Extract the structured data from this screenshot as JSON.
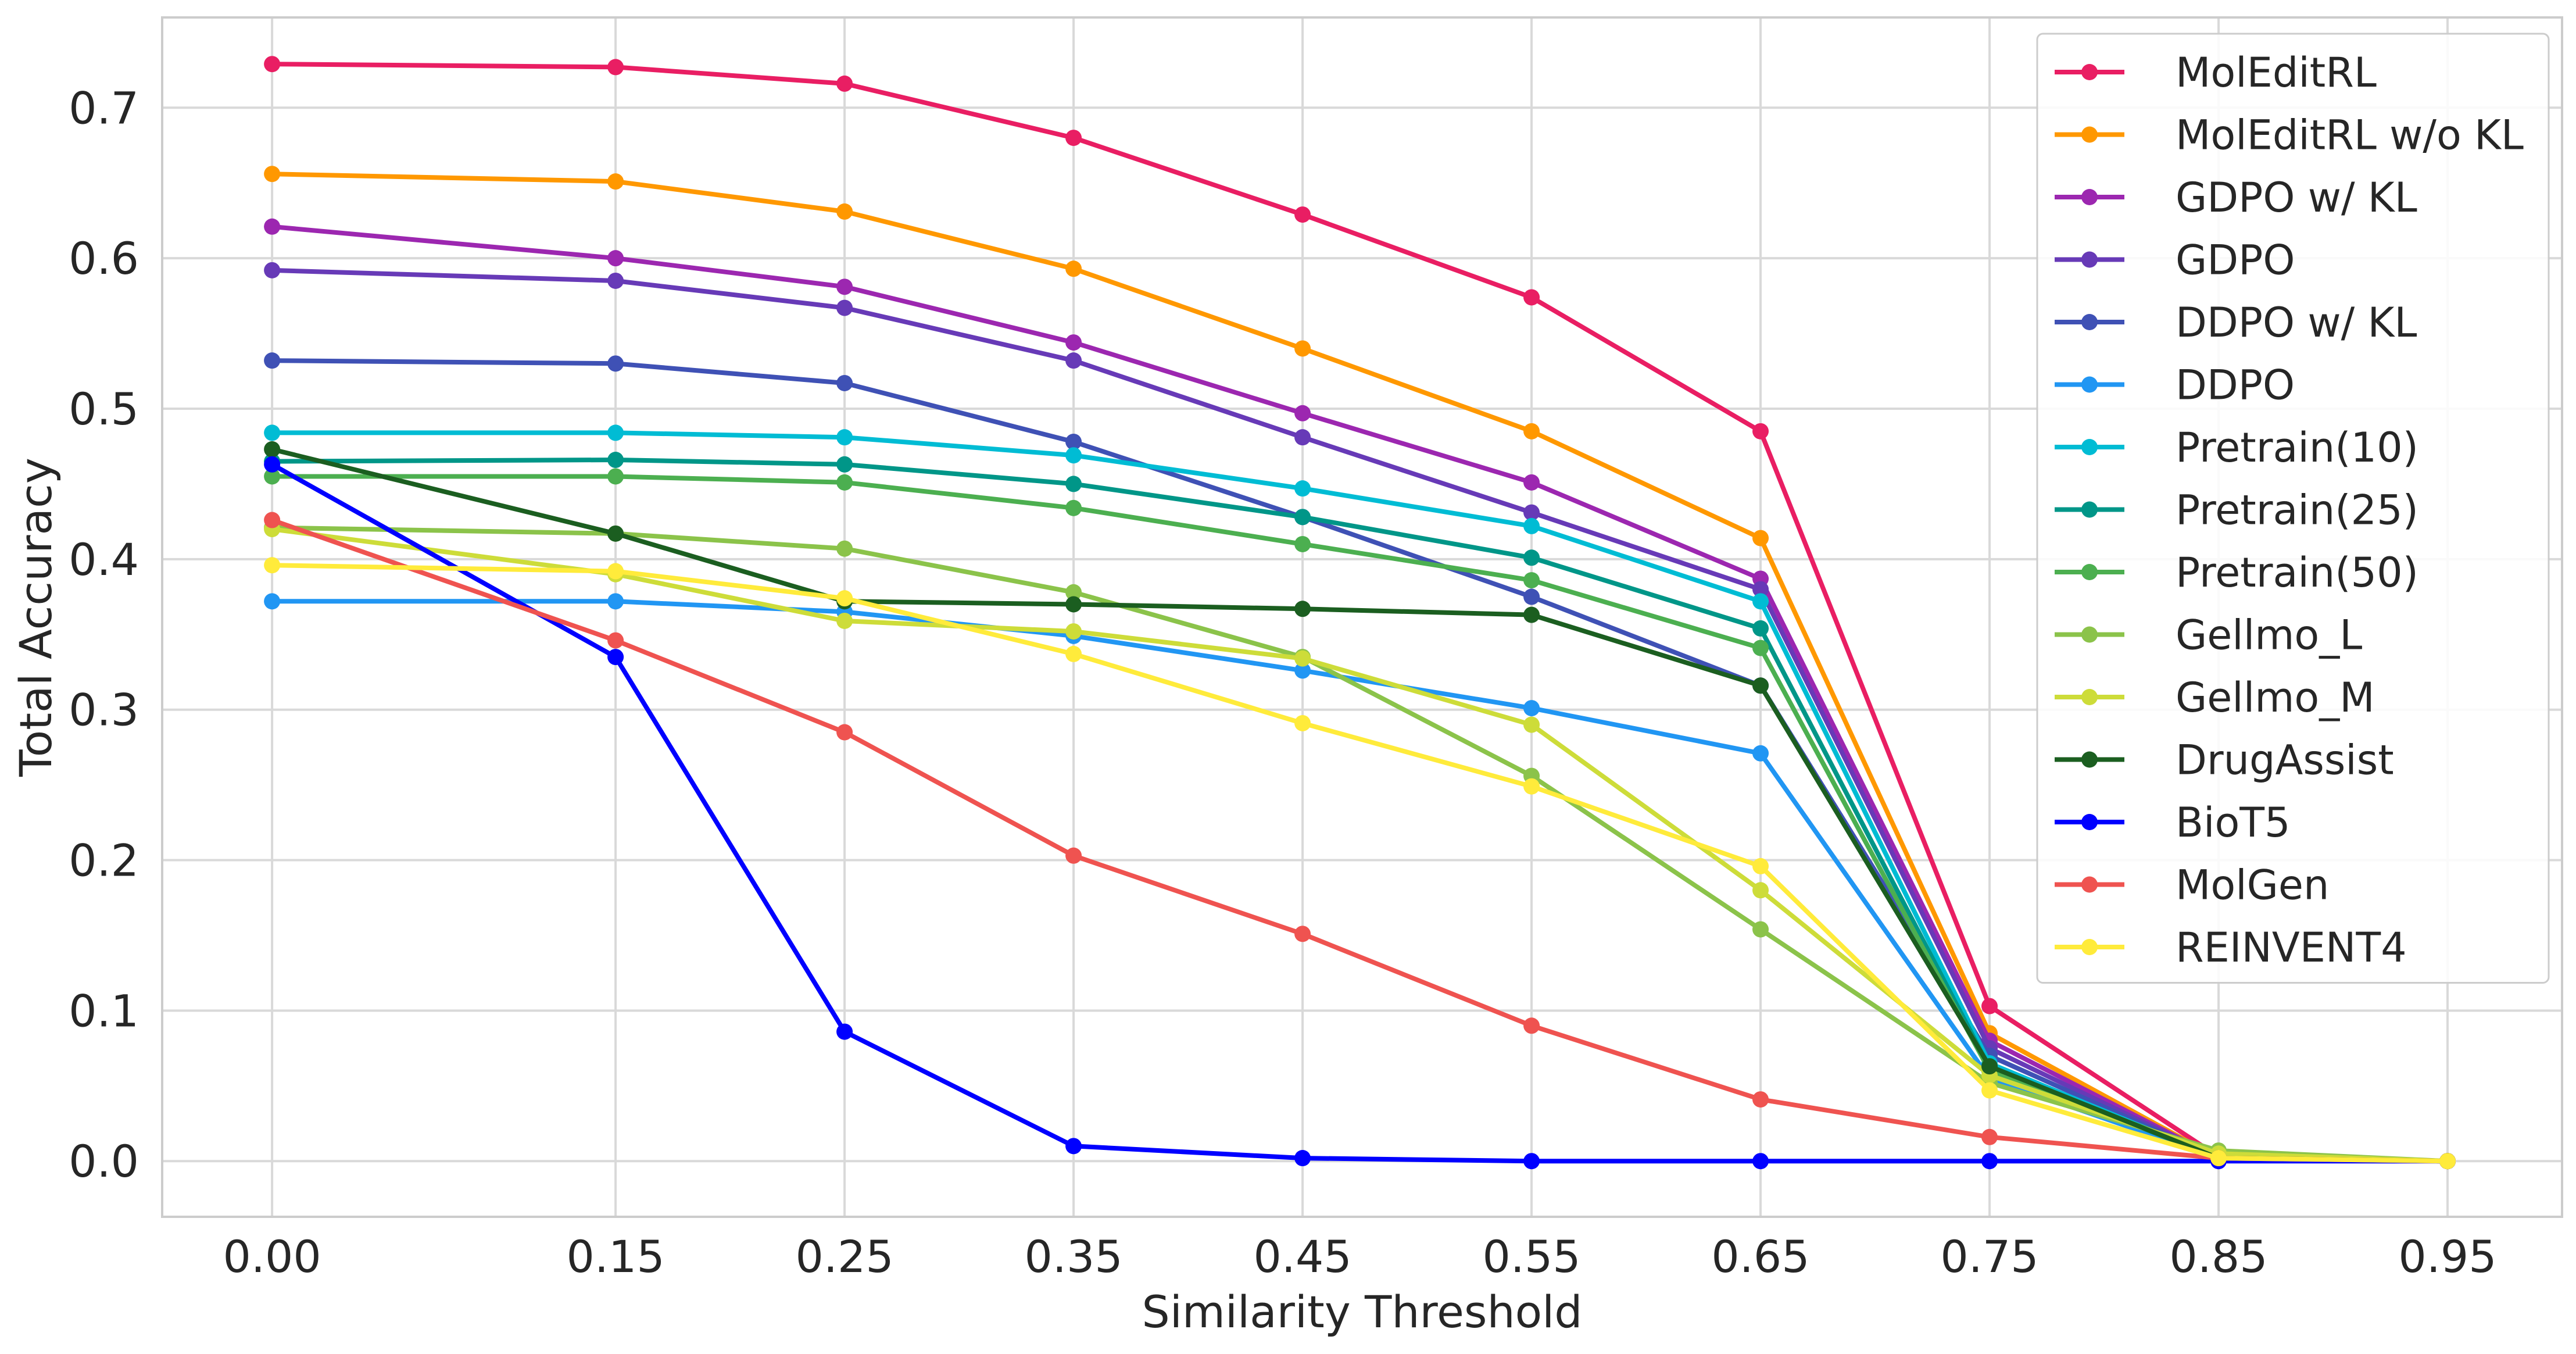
{
  "chart_data": {
    "type": "line",
    "xlabel": "Similarity Threshold",
    "ylabel": "Total Accuracy",
    "x": [
      0.0,
      0.15,
      0.25,
      0.35,
      0.45,
      0.55,
      0.65,
      0.75,
      0.85,
      0.95
    ],
    "x_tick_labels": [
      "0.00",
      "0.15",
      "0.25",
      "0.35",
      "0.45",
      "0.55",
      "0.65",
      "0.75",
      "0.85",
      "0.95"
    ],
    "xlim": [
      -0.048,
      1.0
    ],
    "ylim": [
      -0.037,
      0.76
    ],
    "y_ticks": [
      0.0,
      0.1,
      0.2,
      0.3,
      0.4,
      0.5,
      0.6,
      0.7
    ],
    "y_tick_labels": [
      "0.0",
      "0.1",
      "0.2",
      "0.3",
      "0.4",
      "0.5",
      "0.6",
      "0.7"
    ],
    "grid": true,
    "legend_position": "top-right",
    "series": [
      {
        "name": "MolEditRL",
        "color": "#e91e63",
        "values": [
          0.729,
          0.727,
          0.716,
          0.68,
          0.629,
          0.574,
          0.485,
          0.103,
          0.003,
          0.0
        ]
      },
      {
        "name": "MolEditRL w/o KL",
        "color": "#ff9800",
        "values": [
          0.656,
          0.651,
          0.631,
          0.593,
          0.54,
          0.485,
          0.414,
          0.085,
          0.002,
          0.0
        ]
      },
      {
        "name": "GDPO w/ KL",
        "color": "#9c27b0",
        "values": [
          0.621,
          0.6,
          0.581,
          0.544,
          0.497,
          0.451,
          0.387,
          0.08,
          0.002,
          0.0
        ]
      },
      {
        "name": "GDPO",
        "color": "#673ab7",
        "values": [
          0.592,
          0.585,
          0.567,
          0.532,
          0.481,
          0.431,
          0.38,
          0.075,
          0.002,
          0.0
        ]
      },
      {
        "name": "DDPO w/ KL",
        "color": "#3f51b5",
        "values": [
          0.532,
          0.53,
          0.517,
          0.478,
          0.428,
          0.375,
          0.316,
          0.07,
          0.002,
          0.0
        ]
      },
      {
        "name": "DDPO",
        "color": "#2196f3",
        "values": [
          0.372,
          0.372,
          0.365,
          0.349,
          0.326,
          0.301,
          0.271,
          0.055,
          0.002,
          0.0
        ]
      },
      {
        "name": "Pretrain(10)",
        "color": "#00bcd4",
        "values": [
          0.484,
          0.484,
          0.481,
          0.469,
          0.447,
          0.422,
          0.372,
          0.065,
          0.002,
          0.0
        ]
      },
      {
        "name": "Pretrain(25)",
        "color": "#009688",
        "values": [
          0.465,
          0.466,
          0.463,
          0.45,
          0.428,
          0.401,
          0.354,
          0.062,
          0.002,
          0.0
        ]
      },
      {
        "name": "Pretrain(50)",
        "color": "#4caf50",
        "values": [
          0.455,
          0.455,
          0.451,
          0.434,
          0.41,
          0.386,
          0.341,
          0.06,
          0.004,
          0.0
        ]
      },
      {
        "name": "Gellmo_L",
        "color": "#8bc34a",
        "values": [
          0.421,
          0.417,
          0.407,
          0.378,
          0.335,
          0.256,
          0.154,
          0.052,
          0.007,
          0.0
        ]
      },
      {
        "name": "Gellmo_M",
        "color": "#cddc39",
        "values": [
          0.42,
          0.39,
          0.359,
          0.352,
          0.334,
          0.29,
          0.18,
          0.057,
          0.005,
          0.0
        ]
      },
      {
        "name": "DrugAssist",
        "color": "#1b5e20",
        "values": [
          0.473,
          0.417,
          0.372,
          0.37,
          0.367,
          0.363,
          0.316,
          0.063,
          0.002,
          0.0
        ]
      },
      {
        "name": "BioT5",
        "color": "#0000ff",
        "values": [
          0.463,
          0.335,
          0.086,
          0.01,
          0.002,
          0.0,
          0.0,
          0.0,
          0.0,
          0.0
        ]
      },
      {
        "name": "MolGen",
        "color": "#ef5350",
        "values": [
          0.426,
          0.346,
          0.285,
          0.203,
          0.151,
          0.09,
          0.041,
          0.016,
          0.002,
          0.0
        ]
      },
      {
        "name": "REINVENT4",
        "color": "#ffeb3b",
        "values": [
          0.396,
          0.392,
          0.374,
          0.337,
          0.291,
          0.249,
          0.196,
          0.047,
          0.002,
          0.0
        ]
      }
    ]
  }
}
